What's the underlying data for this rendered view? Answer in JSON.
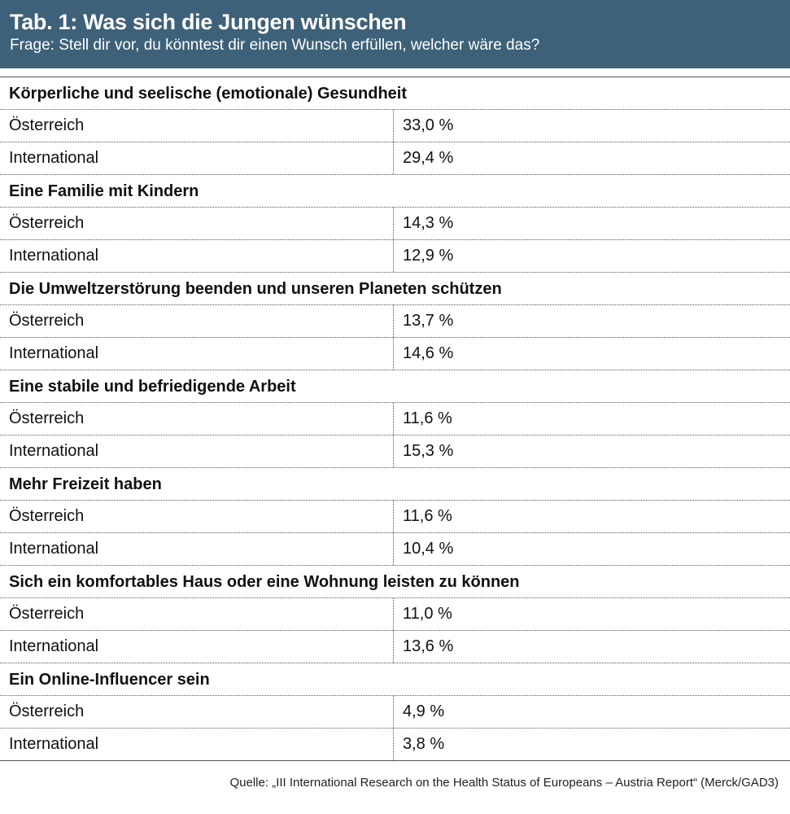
{
  "header": {
    "title": "Tab. 1: Was sich die Jungen wünschen",
    "subtitle": "Frage: Stell dir vor, du könntest dir einen Wunsch erfüllen, welcher wäre das?"
  },
  "groups": [
    {
      "heading": "Körperliche und seelische (emotionale) Gesundheit",
      "rows": [
        {
          "region": "Österreich",
          "value": "33,0 %"
        },
        {
          "region": "International",
          "value": "29,4 %"
        }
      ]
    },
    {
      "heading": "Eine Familie mit Kindern",
      "rows": [
        {
          "region": "Österreich",
          "value": "14,3 %"
        },
        {
          "region": "International",
          "value": "12,9 %"
        }
      ]
    },
    {
      "heading": "Die Umweltzerstörung beenden und unseren Planeten schützen",
      "rows": [
        {
          "region": "Österreich",
          "value": "13,7 %"
        },
        {
          "region": "International",
          "value": "14,6 %"
        }
      ]
    },
    {
      "heading": "Eine stabile und befriedigende Arbeit",
      "rows": [
        {
          "region": "Österreich",
          "value": "11,6 %"
        },
        {
          "region": "International",
          "value": "15,3 %"
        }
      ]
    },
    {
      "heading": "Mehr Freizeit haben",
      "rows": [
        {
          "region": "Österreich",
          "value": "11,6 %"
        },
        {
          "region": "International",
          "value": "10,4 %"
        }
      ]
    },
    {
      "heading": "Sich ein komfortables Haus oder eine Wohnung leisten zu können",
      "rows": [
        {
          "region": "Österreich",
          "value": "11,0 %"
        },
        {
          "region": "International",
          "value": "13,6 %"
        }
      ]
    },
    {
      "heading": "Ein Online-Influencer sein",
      "rows": [
        {
          "region": "Österreich",
          "value": "4,9 %"
        },
        {
          "region": "International",
          "value": "3,8 %"
        }
      ]
    }
  ],
  "source": "Quelle: „III International Research on the Health Status of Europeans – Austria Report“ (Merck/GAD3)",
  "colors": {
    "header_background": "#3d6178",
    "header_text": "#ffffff",
    "body_text": "#111111"
  }
}
